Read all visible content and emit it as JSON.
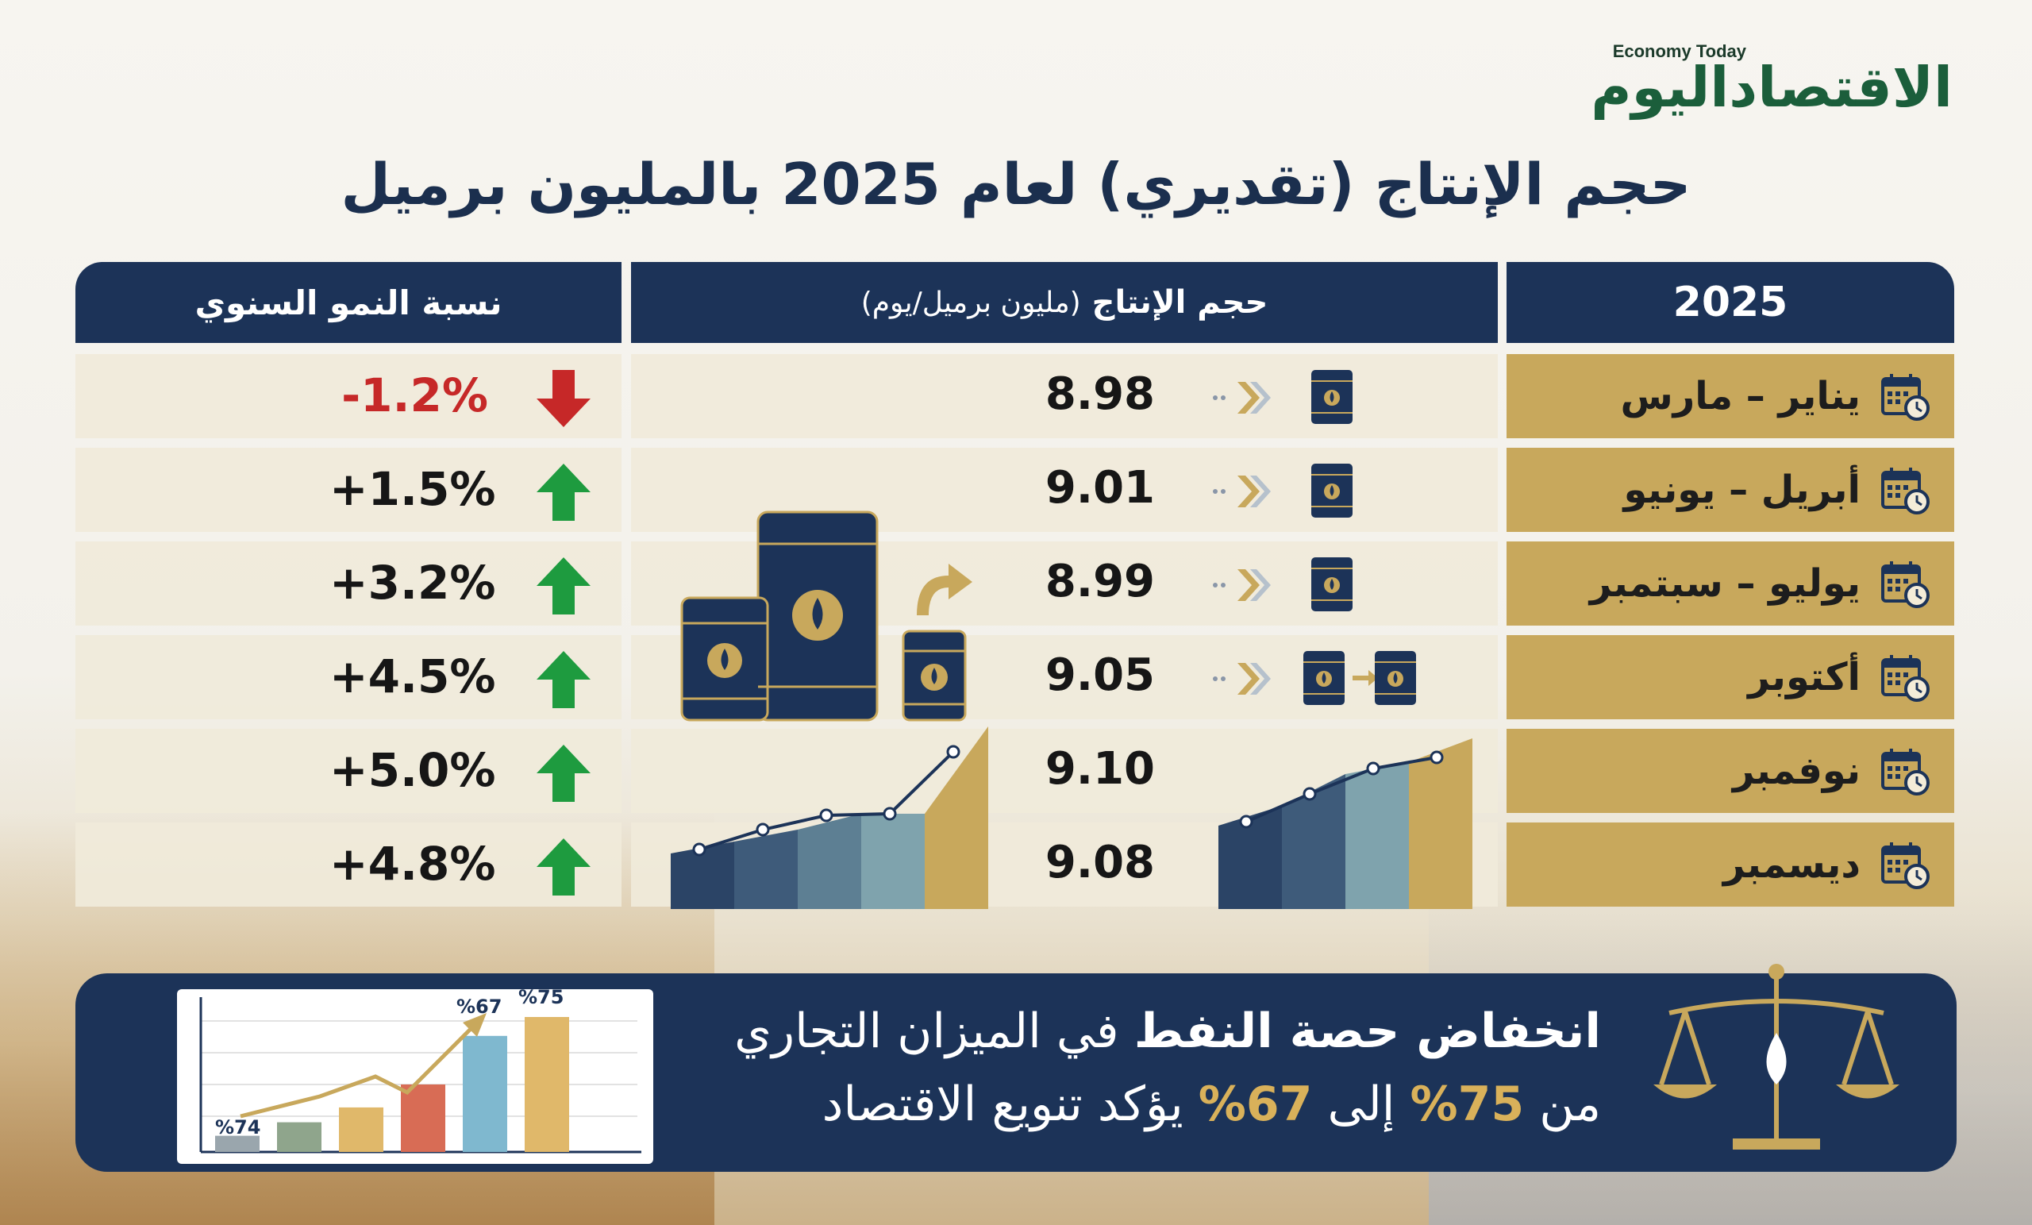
{
  "logo": {
    "en": "Economy Today",
    "ar": "الاقتصاداليوم"
  },
  "title": "حجم الإنتاج (تقديري) لعام 2025 بالمليون برميل",
  "table": {
    "header_period": "2025",
    "header_volume": "حجم الإنتاج",
    "header_volume_unit": "(مليون برميل/يوم)",
    "header_growth": "نسبة النمو السنوي"
  },
  "chart_data": {
    "type": "table",
    "columns": [
      "2025",
      "حجم الإنتاج (مليون برميل/يوم)",
      "نسبة النمو السنوي"
    ],
    "rows": [
      {
        "period": "يناير – مارس",
        "volume": "8.98",
        "growth": "-1.2%",
        "direction": "down"
      },
      {
        "period": "أبريل – يونيو",
        "volume": "9.01",
        "growth": "+1.5%",
        "direction": "up"
      },
      {
        "period": "يوليو – سبتمبر",
        "volume": "8.99",
        "growth": "+3.2%",
        "direction": "up"
      },
      {
        "period": "أكتوبر",
        "volume": "9.05",
        "growth": "+4.5%",
        "direction": "up"
      },
      {
        "period": "نوفمبر",
        "volume": "9.10",
        "growth": "+5.0%",
        "direction": "up"
      },
      {
        "period": "ديسمبر",
        "volume": "9.08",
        "growth": "+4.8%",
        "direction": "up"
      }
    ]
  },
  "banner": {
    "line1_bold": "انخفاض حصة النفط",
    "line1_rest": "في الميزان التجاري",
    "line2_a": "من",
    "line2_v1": "75%",
    "line2_b": "إلى",
    "line2_v2": "67%",
    "line2_c": "يؤكد تنويع الاقتصاد",
    "mini_labels": {
      "first": "%74",
      "second_last": "%67",
      "last": "%75"
    },
    "mini_bars": [
      0.12,
      0.22,
      0.33,
      0.5,
      0.86,
      1.0
    ],
    "mini_colors": [
      "#9aa6ad",
      "#8fa58c",
      "#e0b86a",
      "#d86c55",
      "#7fb8cf",
      "#e0b86a"
    ]
  },
  "colors": {
    "navy": "#1c3358",
    "gold": "#c8a85c",
    "up": "#1e9b3f",
    "down": "#c62828",
    "logo_green": "#1b5e3b"
  }
}
